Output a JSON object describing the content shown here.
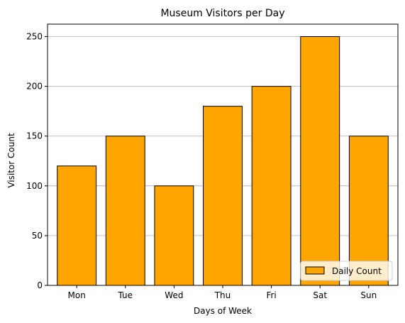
{
  "chart_data": {
    "type": "bar",
    "title": "Museum Visitors per Day",
    "xlabel": "Days of Week",
    "ylabel": "Visitor Count",
    "categories": [
      "Mon",
      "Tue",
      "Wed",
      "Thu",
      "Fri",
      "Sat",
      "Sun"
    ],
    "series": [
      {
        "name": "Daily Count",
        "values": [
          120,
          150,
          100,
          180,
          200,
          250,
          150
        ]
      }
    ],
    "ylim": [
      0,
      262.5
    ],
    "yticks": [
      0,
      50,
      100,
      150,
      200,
      250
    ],
    "grid": "y-major",
    "legend_position": "lower-right",
    "colors": {
      "bar_fill": "#ffa500",
      "bar_edge": "#000000",
      "grid": "#b0b0b0",
      "axis": "#000000"
    }
  }
}
